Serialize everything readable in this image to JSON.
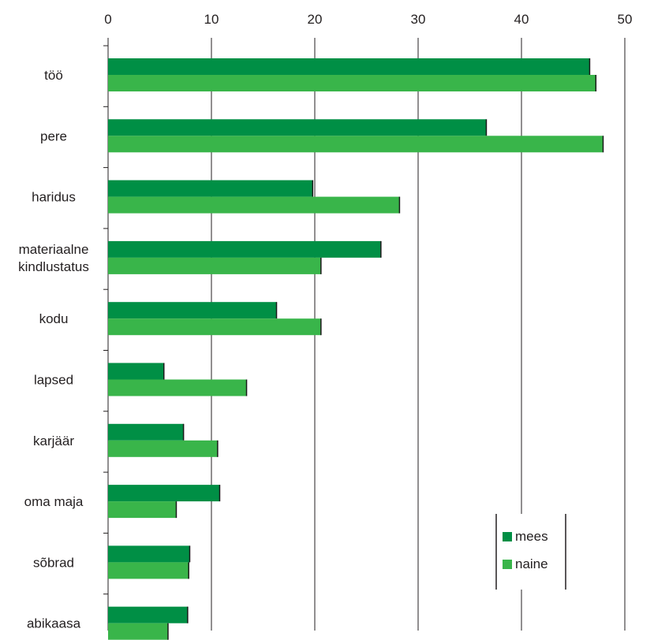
{
  "chart_data": {
    "type": "bar",
    "orientation": "horizontal",
    "categories": [
      "töö",
      "pere",
      "haridus",
      "materiaalne\nkindlustatus",
      "kodu",
      "lapsed",
      "karjäär",
      "oma maja",
      "sõbrad",
      "abikaasa"
    ],
    "series": [
      {
        "name": "mees",
        "color": "#008f45",
        "values": [
          46.6,
          36.6,
          19.8,
          26.4,
          16.3,
          5.4,
          7.3,
          10.8,
          7.9,
          7.7
        ]
      },
      {
        "name": "naine",
        "color": "#39b54a",
        "values": [
          47.2,
          47.9,
          28.2,
          20.6,
          20.6,
          13.4,
          10.6,
          6.6,
          7.8,
          5.8
        ]
      }
    ],
    "xlim": [
      0,
      50
    ],
    "xticks": [
      "0",
      "10",
      "20",
      "30",
      "40",
      "50"
    ],
    "tick_values": [
      0,
      10,
      20,
      30,
      40,
      50
    ],
    "x_axis_position": "top",
    "grid": "vertical",
    "legend_position": "bottom-right",
    "title": "",
    "xlabel": "",
    "ylabel": ""
  }
}
